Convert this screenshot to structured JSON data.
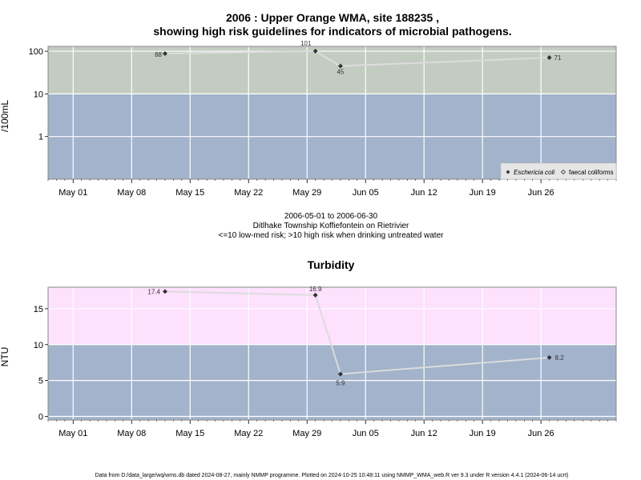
{
  "figure": {
    "title_line1": "2006 : Upper Orange WMA, site 188235 ,",
    "title_line2": "showing high risk guidelines for indicators of microbial pathogens.",
    "caption_dates": "2006-05-01 to 2006-06-30",
    "caption_site": "Ditlhake Township Koffiefontein on Rietrivier",
    "caption_risk": "<=10 low-med risk; >10 high risk when drinking untreated water",
    "footer": "Data from D:/data_large/wq/wms.db dated 2024-08-27, mainly NMMP programme. Plotted on 2024-10-25 10:48:11 using NMMP_WMA_web.R ver 9.3 under R version 4.4.1 (2024-06-14 ucrt)"
  },
  "colors": {
    "high_risk_microbial": "#c2ccc0",
    "low_risk": "#a2b3cb",
    "high_risk_turbidity": "#fde1fd",
    "grid": "#ffffff",
    "series_line": "#dcdcdc",
    "point": "#333333"
  },
  "chart_data": [
    {
      "type": "line",
      "title": "",
      "ylabel": "/100mL",
      "yscale": "log",
      "ylim": [
        0.1,
        130
      ],
      "yticks": [
        1,
        10,
        100
      ],
      "ytick_labels": [
        "1",
        "10",
        "100"
      ],
      "xlim": [
        "2006-04-28",
        "2006-07-05"
      ],
      "xticks": [
        "2006-05-01",
        "2006-05-08",
        "2006-05-15",
        "2006-05-22",
        "2006-05-29",
        "2006-06-05",
        "2006-06-12",
        "2006-06-19",
        "2006-06-26"
      ],
      "xtick_labels": [
        "May 01",
        "May 08",
        "May 15",
        "May 22",
        "May 29",
        "Jun 05",
        "Jun 12",
        "Jun 19",
        "Jun 26"
      ],
      "grid": true,
      "bands": [
        {
          "from": 10,
          "to": 130,
          "label": "high risk"
        },
        {
          "from": 0.1,
          "to": 10,
          "label": "low-med risk"
        }
      ],
      "legend_position": "bottom-right",
      "legend": [
        {
          "label": "Eschericia coli",
          "marker": "filled-diamond"
        },
        {
          "label": "faecal coliforms",
          "marker": "open-diamond"
        }
      ],
      "series": [
        {
          "name": "Eschericia coli",
          "points": [
            {
              "x": "2006-05-12",
              "y": 88,
              "label": "88"
            },
            {
              "x": "2006-05-30",
              "y": 101,
              "label": "101"
            },
            {
              "x": "2006-06-02",
              "y": 45,
              "label": "45"
            },
            {
              "x": "2006-06-27",
              "y": 71,
              "label": "71"
            }
          ]
        }
      ]
    },
    {
      "type": "line",
      "title": "Turbidity",
      "ylabel": "NTU",
      "yscale": "linear",
      "ylim": [
        -0.5,
        18
      ],
      "yticks": [
        0,
        5,
        10,
        15
      ],
      "ytick_labels": [
        "0",
        "5",
        "10",
        "15"
      ],
      "xlim": [
        "2006-04-28",
        "2006-07-05"
      ],
      "xticks": [
        "2006-05-01",
        "2006-05-08",
        "2006-05-15",
        "2006-05-22",
        "2006-05-29",
        "2006-06-05",
        "2006-06-12",
        "2006-06-19",
        "2006-06-26"
      ],
      "xtick_labels": [
        "May 01",
        "May 08",
        "May 15",
        "May 22",
        "May 29",
        "Jun 05",
        "Jun 12",
        "Jun 19",
        "Jun 26"
      ],
      "grid": true,
      "bands": [
        {
          "from": 10,
          "to": 18,
          "label": "high risk"
        },
        {
          "from": -0.5,
          "to": 10,
          "label": "low-med risk"
        }
      ],
      "series": [
        {
          "name": "",
          "points": [
            {
              "x": "2006-05-12",
              "y": 17.4,
              "label": "17.4"
            },
            {
              "x": "2006-05-30",
              "y": 16.9,
              "label": "16.9"
            },
            {
              "x": "2006-06-02",
              "y": 5.9,
              "label": "5.9"
            },
            {
              "x": "2006-06-27",
              "y": 8.2,
              "label": "8.2"
            }
          ]
        }
      ]
    }
  ]
}
